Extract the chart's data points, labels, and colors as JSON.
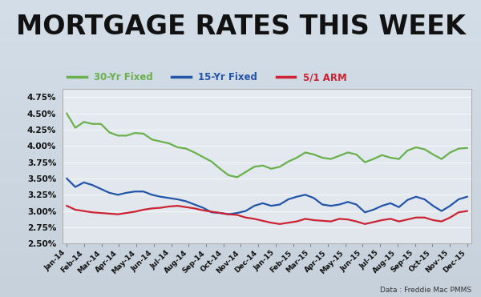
{
  "title": "MORTGAGE RATES THIS WEEK",
  "title_fontsize": 24,
  "title_fontweight": "bold",
  "subtitle": "Data : Freddie Mac PMMS",
  "legend_labels": [
    "30-Yr Fixed",
    "15-Yr Fixed",
    "5/1 ARM"
  ],
  "line_colors": [
    "#6ab04c",
    "#2255aa",
    "#cc2233"
  ],
  "ylim": [
    2.5,
    4.875
  ],
  "yticks": [
    2.5,
    2.75,
    3.0,
    3.25,
    3.5,
    3.75,
    4.0,
    4.25,
    4.5,
    4.75
  ],
  "xtick_labels": [
    "Jan-14",
    "Feb-14",
    "Mar-14",
    "Apr-14",
    "May-14",
    "Jun-14",
    "Jul-14",
    "Aug-14",
    "Sep-14",
    "Oct-14",
    "Nov-14",
    "Dec-14",
    "Jan-15",
    "Feb-15",
    "Mar-15",
    "Apr-15",
    "May-15",
    "Jun-15",
    "Jul-15",
    "Aug-15",
    "Sep-15",
    "Oct-15",
    "Nov-15",
    "Dec-15"
  ],
  "background_color": "#c8d4dc",
  "series_30yr": [
    4.5,
    4.28,
    4.37,
    4.34,
    4.34,
    4.21,
    4.16,
    4.16,
    4.2,
    4.19,
    4.1,
    4.07,
    4.04,
    3.98,
    3.96,
    3.9,
    3.83,
    3.76,
    3.65,
    3.55,
    3.52,
    3.6,
    3.68,
    3.7,
    3.65,
    3.68,
    3.76,
    3.82,
    3.9,
    3.87,
    3.82,
    3.8,
    3.85,
    3.9,
    3.87,
    3.75,
    3.8,
    3.86,
    3.82,
    3.8,
    3.93,
    3.98,
    3.95,
    3.87,
    3.8,
    3.9,
    3.96,
    3.97
  ],
  "series_15yr": [
    3.5,
    3.37,
    3.44,
    3.4,
    3.34,
    3.28,
    3.25,
    3.28,
    3.3,
    3.3,
    3.25,
    3.22,
    3.2,
    3.18,
    3.15,
    3.1,
    3.05,
    2.98,
    2.97,
    2.95,
    2.97,
    3.0,
    3.08,
    3.12,
    3.08,
    3.1,
    3.18,
    3.22,
    3.25,
    3.2,
    3.1,
    3.08,
    3.1,
    3.14,
    3.1,
    2.98,
    3.02,
    3.08,
    3.12,
    3.06,
    3.17,
    3.22,
    3.18,
    3.08,
    3.0,
    3.08,
    3.18,
    3.22
  ],
  "series_arm": [
    3.08,
    3.02,
    3.0,
    2.98,
    2.97,
    2.96,
    2.95,
    2.97,
    2.99,
    3.02,
    3.04,
    3.05,
    3.07,
    3.08,
    3.06,
    3.04,
    3.01,
    2.99,
    2.97,
    2.95,
    2.94,
    2.9,
    2.88,
    2.85,
    2.82,
    2.8,
    2.82,
    2.84,
    2.88,
    2.86,
    2.85,
    2.84,
    2.88,
    2.87,
    2.84,
    2.8,
    2.83,
    2.86,
    2.88,
    2.84,
    2.87,
    2.9,
    2.9,
    2.86,
    2.84,
    2.9,
    2.98,
    3.0
  ]
}
